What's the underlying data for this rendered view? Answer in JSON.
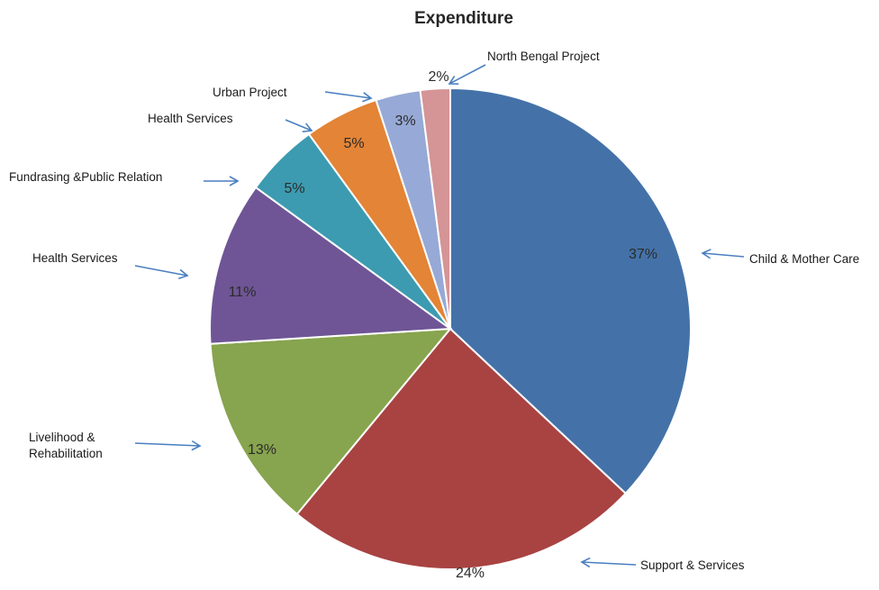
{
  "chart_data": {
    "type": "pie",
    "title": "Expenditure",
    "slices": [
      {
        "label": "Child & Mother Care",
        "value": 37,
        "value_label": "37%",
        "color": "#4472a8"
      },
      {
        "label": "Support & Services",
        "value": 24,
        "value_label": "24%",
        "color": "#a84342"
      },
      {
        "label": "Livelihood &\nRehabilitation",
        "value": 13,
        "value_label": "13%",
        "color": "#87a44e"
      },
      {
        "label": "Health Services",
        "value": 11,
        "value_label": "11%",
        "color": "#6f5596"
      },
      {
        "label": "Fundrasing &Public Relation",
        "value": 5,
        "value_label": "5%",
        "color": "#3c9bb0"
      },
      {
        "label": "Health Services",
        "value": 5,
        "value_label": "5%",
        "color": "#e38436"
      },
      {
        "label": "Urban Project",
        "value": 3,
        "value_label": "3%",
        "color": "#97a9d6"
      },
      {
        "label": "North Bengal Project",
        "value": 2,
        "value_label": "2%",
        "color": "#d59496"
      }
    ]
  }
}
